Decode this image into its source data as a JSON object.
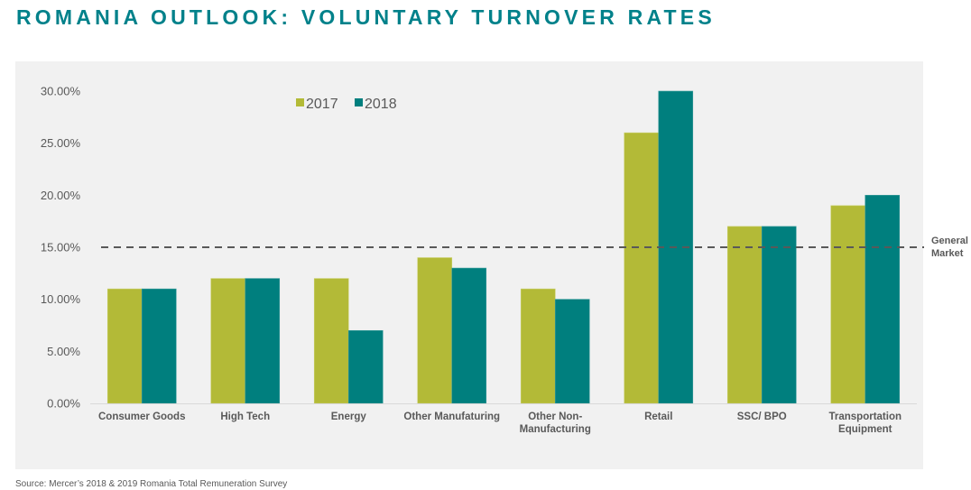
{
  "title": "ROMANIA OUTLOOK: VOLUNTARY TURNOVER RATES",
  "source": "Source: Mercer’s 2018 & 2019 Romania Total Remuneration Survey",
  "colors": {
    "title": "#00818a",
    "series_2017": "#b3ba37",
    "series_2018": "#007f7e",
    "reference_line": "#595959",
    "panel_bg": "#f1f1f1",
    "text": "#595959"
  },
  "chart_data": {
    "type": "bar",
    "title": "ROMANIA OUTLOOK: VOLUNTARY TURNOVER RATES",
    "xlabel": "",
    "ylabel": "",
    "categories": [
      "Consumer Goods",
      "High Tech",
      "Energy",
      "Other Manufaturing",
      "Other Non-\nManufacturing",
      "Retail",
      "SSC/ BPO",
      "Transportation\nEquipment"
    ],
    "series": [
      {
        "name": "2017",
        "values": [
          11,
          12,
          12,
          14,
          11,
          26,
          17,
          19
        ]
      },
      {
        "name": "2018",
        "values": [
          11,
          12,
          7,
          13,
          10,
          30,
          17,
          20
        ]
      }
    ],
    "ylim": [
      0,
      30
    ],
    "yticks": [
      0,
      5,
      10,
      15,
      20,
      25,
      30
    ],
    "ytick_labels": [
      "0.00%",
      "5.00%",
      "10.00%",
      "15.00%",
      "20.00%",
      "25.00%",
      "30.00%"
    ],
    "unit": "%",
    "grid": false,
    "legend": {
      "position": "top-center",
      "entries": [
        "2017",
        "2018"
      ]
    },
    "reference_line": {
      "value": 15,
      "label": "General\nMarket",
      "style": "dashed"
    }
  }
}
